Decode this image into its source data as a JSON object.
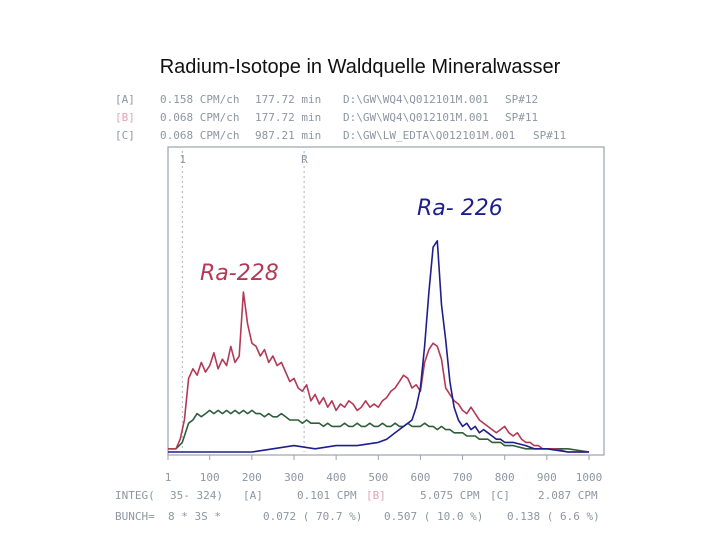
{
  "title": "Radium-Isotope in Waldquelle Mineralwasser",
  "colors": {
    "A": "#b23a56",
    "B": "#1f1f8c",
    "C": "#2f5e3b",
    "info_gray": "#8e96a2",
    "axis": "#9aa3ad"
  },
  "info_rows": [
    {
      "tag": "[A]",
      "cpm": "0.158 CPM/ch",
      "time": "177.72 min",
      "file": "D:\\GW\\WQ4\\Q012101M.001",
      "sp": "SP#12"
    },
    {
      "tag": "[B]",
      "cpm": "0.068 CPM/ch",
      "time": "177.72 min",
      "file": "D:\\GW\\WQ4\\Q012101M.001",
      "sp": "SP#11"
    },
    {
      "tag": "[C]",
      "cpm": "0.068 CPM/ch",
      "time": "987.21 min",
      "file": "D:\\GW\\LW_EDTA\\Q012101M.001",
      "sp": "SP#11"
    }
  ],
  "chart_data": {
    "type": "line",
    "xlim": [
      0,
      1024
    ],
    "x_ticks": [
      1,
      100,
      200,
      300,
      400,
      500,
      600,
      700,
      800,
      900,
      1000
    ],
    "window_markers": [
      {
        "label": "1",
        "x": 35
      },
      {
        "label": "R",
        "x": 324
      }
    ],
    "annotations": [
      {
        "text": "Ra-228",
        "near_x": 210
      },
      {
        "text": "Ra- 226",
        "near_x": 665
      }
    ],
    "series": [
      {
        "id": "A",
        "points": [
          [
            1,
            1
          ],
          [
            20,
            1
          ],
          [
            30,
            4
          ],
          [
            40,
            10
          ],
          [
            50,
            23
          ],
          [
            60,
            26
          ],
          [
            70,
            24
          ],
          [
            80,
            28
          ],
          [
            90,
            25
          ],
          [
            100,
            27
          ],
          [
            110,
            31
          ],
          [
            120,
            26
          ],
          [
            130,
            29
          ],
          [
            140,
            27
          ],
          [
            150,
            33
          ],
          [
            160,
            28
          ],
          [
            170,
            30
          ],
          [
            180,
            50
          ],
          [
            190,
            40
          ],
          [
            200,
            34
          ],
          [
            210,
            33
          ],
          [
            220,
            30
          ],
          [
            230,
            32
          ],
          [
            240,
            28
          ],
          [
            250,
            30
          ],
          [
            260,
            27
          ],
          [
            270,
            28
          ],
          [
            280,
            25
          ],
          [
            290,
            22
          ],
          [
            300,
            23
          ],
          [
            310,
            20
          ],
          [
            320,
            19
          ],
          [
            330,
            21
          ],
          [
            340,
            16
          ],
          [
            350,
            18
          ],
          [
            360,
            15
          ],
          [
            370,
            17
          ],
          [
            380,
            14
          ],
          [
            390,
            16
          ],
          [
            400,
            13
          ],
          [
            410,
            15
          ],
          [
            420,
            14
          ],
          [
            430,
            16
          ],
          [
            440,
            15
          ],
          [
            450,
            13
          ],
          [
            460,
            14
          ],
          [
            470,
            16
          ],
          [
            480,
            14
          ],
          [
            490,
            15
          ],
          [
            500,
            14
          ],
          [
            510,
            16
          ],
          [
            520,
            17
          ],
          [
            530,
            19
          ],
          [
            540,
            20
          ],
          [
            550,
            22
          ],
          [
            560,
            24
          ],
          [
            570,
            23
          ],
          [
            580,
            20
          ],
          [
            590,
            21
          ],
          [
            600,
            19
          ],
          [
            610,
            28
          ],
          [
            620,
            32
          ],
          [
            630,
            34
          ],
          [
            640,
            33
          ],
          [
            650,
            29
          ],
          [
            660,
            20
          ],
          [
            670,
            18
          ],
          [
            680,
            16
          ],
          [
            690,
            15
          ],
          [
            700,
            13
          ],
          [
            710,
            12
          ],
          [
            720,
            14
          ],
          [
            730,
            12
          ],
          [
            740,
            10
          ],
          [
            750,
            9
          ],
          [
            760,
            8
          ],
          [
            770,
            7
          ],
          [
            780,
            6
          ],
          [
            790,
            7
          ],
          [
            800,
            8
          ],
          [
            810,
            6
          ],
          [
            820,
            5
          ],
          [
            830,
            6
          ],
          [
            840,
            4
          ],
          [
            850,
            3
          ],
          [
            860,
            3
          ],
          [
            870,
            2
          ],
          [
            880,
            2
          ],
          [
            890,
            1
          ],
          [
            900,
            1
          ],
          [
            920,
            1
          ],
          [
            950,
            0
          ],
          [
            1000,
            0
          ]
        ]
      },
      {
        "id": "B",
        "points": [
          [
            1,
            0
          ],
          [
            100,
            0
          ],
          [
            200,
            0
          ],
          [
            250,
            1
          ],
          [
            300,
            2
          ],
          [
            350,
            1
          ],
          [
            400,
            2
          ],
          [
            450,
            2
          ],
          [
            500,
            3
          ],
          [
            520,
            4
          ],
          [
            540,
            6
          ],
          [
            560,
            8
          ],
          [
            570,
            9
          ],
          [
            580,
            10
          ],
          [
            590,
            14
          ],
          [
            600,
            20
          ],
          [
            610,
            33
          ],
          [
            620,
            50
          ],
          [
            630,
            64
          ],
          [
            640,
            66
          ],
          [
            650,
            46
          ],
          [
            660,
            35
          ],
          [
            670,
            22
          ],
          [
            680,
            14
          ],
          [
            690,
            10
          ],
          [
            700,
            8
          ],
          [
            710,
            9
          ],
          [
            720,
            7
          ],
          [
            730,
            8
          ],
          [
            740,
            6
          ],
          [
            750,
            7
          ],
          [
            760,
            6
          ],
          [
            770,
            5
          ],
          [
            780,
            4
          ],
          [
            790,
            4
          ],
          [
            800,
            3
          ],
          [
            820,
            3
          ],
          [
            850,
            2
          ],
          [
            870,
            1
          ],
          [
            900,
            1
          ],
          [
            950,
            0
          ],
          [
            1000,
            0
          ]
        ]
      },
      {
        "id": "C",
        "points": [
          [
            1,
            1
          ],
          [
            20,
            1
          ],
          [
            35,
            3
          ],
          [
            50,
            9
          ],
          [
            60,
            10
          ],
          [
            70,
            12
          ],
          [
            80,
            11
          ],
          [
            90,
            12
          ],
          [
            100,
            13
          ],
          [
            110,
            12
          ],
          [
            120,
            13
          ],
          [
            130,
            12
          ],
          [
            140,
            13
          ],
          [
            150,
            12
          ],
          [
            160,
            13
          ],
          [
            170,
            12
          ],
          [
            180,
            13
          ],
          [
            190,
            12
          ],
          [
            200,
            13
          ],
          [
            210,
            12
          ],
          [
            220,
            12
          ],
          [
            230,
            11
          ],
          [
            240,
            12
          ],
          [
            250,
            11
          ],
          [
            260,
            11
          ],
          [
            270,
            12
          ],
          [
            280,
            11
          ],
          [
            290,
            10
          ],
          [
            300,
            10
          ],
          [
            310,
            10
          ],
          [
            320,
            9
          ],
          [
            330,
            10
          ],
          [
            340,
            9
          ],
          [
            350,
            9
          ],
          [
            360,
            9
          ],
          [
            370,
            8
          ],
          [
            380,
            9
          ],
          [
            390,
            8
          ],
          [
            400,
            8
          ],
          [
            410,
            8
          ],
          [
            420,
            9
          ],
          [
            430,
            8
          ],
          [
            440,
            8
          ],
          [
            450,
            9
          ],
          [
            460,
            8
          ],
          [
            470,
            8
          ],
          [
            480,
            9
          ],
          [
            490,
            8
          ],
          [
            500,
            8
          ],
          [
            510,
            9
          ],
          [
            520,
            8
          ],
          [
            530,
            8
          ],
          [
            540,
            9
          ],
          [
            550,
            8
          ],
          [
            560,
            8
          ],
          [
            570,
            9
          ],
          [
            580,
            8
          ],
          [
            590,
            8
          ],
          [
            600,
            8
          ],
          [
            610,
            9
          ],
          [
            620,
            8
          ],
          [
            630,
            8
          ],
          [
            640,
            7
          ],
          [
            650,
            8
          ],
          [
            660,
            7
          ],
          [
            670,
            7
          ],
          [
            680,
            6
          ],
          [
            690,
            6
          ],
          [
            700,
            6
          ],
          [
            710,
            5
          ],
          [
            720,
            5
          ],
          [
            730,
            5
          ],
          [
            740,
            4
          ],
          [
            750,
            4
          ],
          [
            760,
            4
          ],
          [
            770,
            3
          ],
          [
            780,
            3
          ],
          [
            790,
            3
          ],
          [
            800,
            2
          ],
          [
            820,
            2
          ],
          [
            850,
            1
          ],
          [
            900,
            1
          ],
          [
            950,
            1
          ],
          [
            1000,
            0
          ]
        ]
      }
    ],
    "ymax": 70
  },
  "footer": {
    "integ_label": "INTEG(",
    "integ_range": "35- 324)",
    "integ_a_tag": "[A]",
    "integ_a_val": "0.101 CPM",
    "integ_b_tag": "[B]",
    "integ_b_val": "5.075 CPM",
    "integ_c_tag": "[C]",
    "integ_c_val": "2.087 CPM",
    "bunch_label": "BUNCH=",
    "bunch_val": "8  *  3S *",
    "bunch_a": "0.072 ( 70.7 %)",
    "bunch_b": "0.507 ( 10.0 %)",
    "bunch_c": "0.138 (  6.6 %)"
  }
}
